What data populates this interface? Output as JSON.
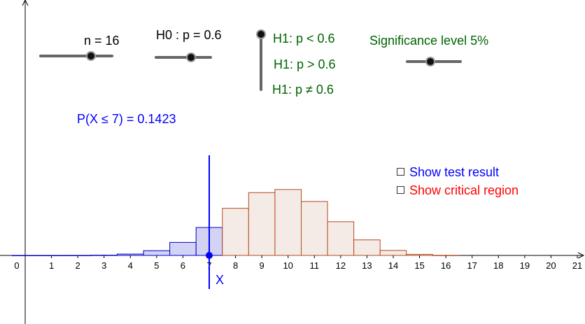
{
  "controls": {
    "n_label": "n = 16",
    "h0_label": "H0 : p = 0.6",
    "alternatives": [
      "H1: p < 0.6",
      "H1: p > 0.6",
      "H1: p ≠ 0.6"
    ],
    "selected_alternative": "H1: p < 0.6",
    "significance_label": "Significance level 5%"
  },
  "probability_text": "P(X ≤ 7) = 0.1423",
  "checkboxes": {
    "show_test_result": {
      "label": "Show test result",
      "checked": false
    },
    "show_critical_region": {
      "label": "Show critical region",
      "checked": false
    }
  },
  "colors": {
    "lower_fill": "#d3d3f5",
    "lower_stroke": "#0000c8",
    "upper_fill": "#f5ebe6",
    "upper_stroke": "#b44a1e",
    "axis": "#000000",
    "marker": "#0000ff",
    "controls_green": "#006400"
  },
  "chart_data": {
    "type": "bar",
    "x_variable_label": "X",
    "marker_x": 7,
    "xlim": [
      0,
      21
    ],
    "x_ticks": [
      0,
      1,
      2,
      3,
      4,
      5,
      6,
      7,
      8,
      9,
      10,
      11,
      12,
      13,
      14,
      15,
      16,
      17,
      18,
      19,
      20,
      21
    ],
    "categories": [
      0,
      1,
      2,
      3,
      4,
      5,
      6,
      7,
      8,
      9,
      10,
      11,
      12,
      13,
      14,
      15,
      16
    ],
    "values": [
      0.0,
      0.0,
      0.0001,
      0.0008,
      0.004,
      0.0142,
      0.0392,
      0.084,
      0.1417,
      0.1889,
      0.1983,
      0.1623,
      0.1014,
      0.0468,
      0.015,
      0.003,
      0.0003
    ]
  }
}
